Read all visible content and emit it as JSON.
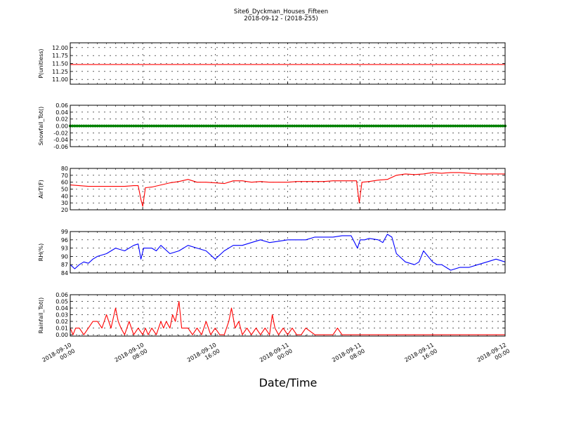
{
  "chart_data": {
    "type": "line",
    "title_line1": "Site6_Dyckman_Houses_Fifteen",
    "title_line2": "2018-09-12 - (2018-255)",
    "xlabel": "Date/Time",
    "x_ticks": [
      {
        "line1": "2018-09-10",
        "line2": "00:00"
      },
      {
        "line1": "2018-09-10",
        "line2": "08:00"
      },
      {
        "line1": "2018-09-10",
        "line2": "16:00"
      },
      {
        "line1": "2018-09-11",
        "line2": "00:00"
      },
      {
        "line1": "2018-09-11",
        "line2": "08:00"
      },
      {
        "line1": "2018-09-11",
        "line2": "16:00"
      },
      {
        "line1": "2018-09-12",
        "line2": "00:00"
      }
    ],
    "x_range_hours": [
      0,
      48
    ],
    "grid": true,
    "panels": [
      {
        "ylabel": "P(unitless)",
        "color": "#ff0000",
        "ylim": [
          10.85,
          12.15
        ],
        "yticks": [
          "11.00",
          "11.25",
          "11.50",
          "11.75",
          "12.00"
        ],
        "ytick_values": [
          11.0,
          11.25,
          11.5,
          11.75,
          12.0
        ],
        "series": [
          {
            "x": [
              0,
              48
            ],
            "y": [
              11.47,
              11.47
            ]
          }
        ]
      },
      {
        "ylabel": "Snowfall_Tot()",
        "color": "#008000",
        "marker": "dot",
        "ylim": [
          -0.06,
          0.06
        ],
        "yticks": [
          "-0.06",
          "-0.04",
          "-0.02",
          "0.00",
          "0.02",
          "0.04",
          "0.06"
        ],
        "ytick_values": [
          -0.06,
          -0.04,
          -0.02,
          0.0,
          0.02,
          0.04,
          0.06
        ],
        "series": [
          {
            "x": [
              0,
              48
            ],
            "y": [
              0.0,
              0.0
            ]
          }
        ]
      },
      {
        "ylabel": "AirT(F)",
        "color": "#ff0000",
        "ylim": [
          20,
          80
        ],
        "yticks": [
          "20",
          "30",
          "40",
          "50",
          "60",
          "70",
          "80"
        ],
        "ytick_values": [
          20,
          30,
          40,
          50,
          60,
          70,
          80
        ],
        "series": [
          {
            "x": [
              0,
              1,
              2,
              3,
              4,
              5,
              6,
              7,
              7.5,
              7.8,
              8.0,
              8.3,
              9,
              10,
              11,
              12,
              13,
              14,
              15,
              16,
              17,
              18,
              19,
              20,
              21,
              22,
              23,
              24,
              25,
              26,
              27,
              28,
              29,
              30,
              31,
              31.6,
              31.9,
              32.2,
              33,
              34,
              35,
              36,
              37,
              38,
              39,
              40,
              41,
              42,
              43,
              44,
              45,
              46,
              47,
              48
            ],
            "y": [
              56,
              55,
              54,
              54,
              54,
              54,
              54,
              55,
              55,
              35,
              25,
              52,
              53,
              56,
              59,
              61,
              64,
              60,
              60,
              59,
              58,
              62,
              62,
              60,
              61,
              60,
              60,
              60,
              61,
              61,
              61,
              61,
              62,
              62,
              62,
              62,
              30,
              60,
              61,
              63,
              64,
              70,
              72,
              71,
              72,
              74,
              73,
              74,
              74,
              73,
              72,
              72,
              72,
              72
            ]
          }
        ]
      },
      {
        "ylabel": "RH(%)",
        "color": "#0000ff",
        "ylim": [
          84,
          99
        ],
        "yticks": [
          "84",
          "87",
          "90",
          "93",
          "96",
          "99"
        ],
        "ytick_values": [
          84,
          87,
          90,
          93,
          96,
          99
        ],
        "series": [
          {
            "x": [
              0,
              0.5,
              1,
              1.5,
              2,
              2.5,
              3,
              4,
              5,
              6,
              7,
              7.5,
              7.8,
              8.1,
              9,
              9.5,
              10,
              11,
              12,
              13,
              14,
              15,
              16,
              17,
              18,
              19,
              20,
              21,
              22,
              23,
              24,
              25,
              26,
              27,
              28,
              29,
              30,
              31,
              31.7,
              32,
              32.5,
              33,
              34,
              34.5,
              35,
              35.5,
              36,
              37,
              38,
              38.5,
              39,
              40,
              40.5,
              41,
              42,
              43,
              44,
              45,
              46,
              47,
              48
            ],
            "y": [
              87,
              85.5,
              87,
              88,
              87.5,
              89,
              90,
              91,
              93,
              92,
              94,
              94.5,
              89,
              93,
              93,
              92,
              94,
              91,
              92,
              94,
              93,
              92,
              89,
              92,
              94,
              94,
              95,
              96,
              95,
              95.5,
              96,
              96,
              96,
              97,
              97,
              97,
              97.5,
              97.5,
              93,
              96,
              96,
              96.5,
              96,
              95,
              98,
              97,
              91,
              88,
              87,
              88,
              92,
              88,
              87,
              87,
              85,
              86,
              86,
              87,
              88,
              89,
              88
            ]
          }
        ]
      },
      {
        "ylabel": "Rainfall_Tot()",
        "color": "#ff0000",
        "ylim": [
          -0.002,
          0.06
        ],
        "yticks": [
          "0.00",
          "0.01",
          "0.02",
          "0.03",
          "0.04",
          "0.05",
          "0.06"
        ],
        "ytick_values": [
          0.0,
          0.01,
          0.02,
          0.03,
          0.04,
          0.05,
          0.06
        ],
        "series": [
          {
            "x": [
              0,
              0.3,
              0.6,
              1,
              1.5,
              2,
              2.5,
              3,
              3.5,
              4,
              4.5,
              5,
              5.3,
              5.6,
              6,
              6.5,
              7,
              7.5,
              8,
              8.3,
              8.6,
              9,
              9.5,
              10,
              10.3,
              10.6,
              11,
              11.3,
              11.6,
              12,
              12.3,
              12.6,
              13,
              13.5,
              14,
              14.5,
              15,
              15.5,
              16,
              16.5,
              17,
              17.5,
              17.8,
              18.2,
              18.6,
              19,
              19.5,
              20,
              20.5,
              21,
              21.5,
              22,
              22.3,
              22.6,
              23,
              23.5,
              24,
              24.5,
              25,
              25.5,
              26,
              27,
              28,
              29,
              29.5,
              30,
              31,
              32,
              40,
              48
            ],
            "y": [
              0.01,
              0.0,
              0.01,
              0.01,
              0.0,
              0.01,
              0.02,
              0.02,
              0.01,
              0.03,
              0.01,
              0.04,
              0.02,
              0.01,
              0.0,
              0.02,
              0.0,
              0.01,
              0.0,
              0.01,
              0.0,
              0.01,
              0.0,
              0.02,
              0.01,
              0.02,
              0.01,
              0.03,
              0.02,
              0.05,
              0.01,
              0.01,
              0.01,
              0.0,
              0.01,
              0.0,
              0.02,
              0.0,
              0.01,
              0.0,
              0.0,
              0.02,
              0.04,
              0.01,
              0.02,
              0.0,
              0.01,
              0.0,
              0.01,
              0.0,
              0.01,
              0.0,
              0.03,
              0.01,
              0.0,
              0.01,
              0.0,
              0.01,
              0.0,
              0.0,
              0.01,
              0.0,
              0.0,
              0.0,
              0.01,
              0.0,
              0.0,
              0.0,
              0.0,
              0.0
            ]
          }
        ]
      }
    ]
  }
}
